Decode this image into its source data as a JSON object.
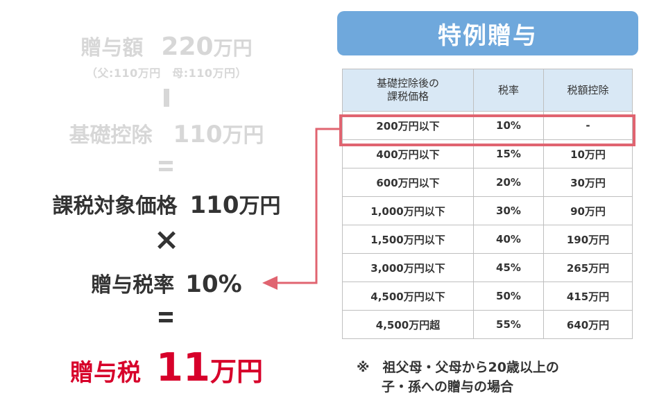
{
  "left": {
    "gift": {
      "label": "贈与額",
      "value": "220",
      "unit": "万円"
    },
    "gift_note": "（父:110万円　母:110万円）",
    "deduction": {
      "label": "基礎控除",
      "value": "110",
      "unit": "万円"
    },
    "taxable": {
      "label": "課税対象価格",
      "value": "110",
      "unit": "万円"
    },
    "times": "×",
    "rate": {
      "label": "贈与税率",
      "value": "10%"
    },
    "tax": {
      "label": "贈与税",
      "value": "11",
      "unit": "万円"
    }
  },
  "banner": "特例贈与",
  "table": {
    "headers": [
      "基礎控除後の\n課税価格",
      "税率",
      "税額控除"
    ],
    "rows": [
      [
        "200万円以下",
        "10%",
        "-"
      ],
      [
        "400万円以下",
        "15%",
        "10万円"
      ],
      [
        "600万円以下",
        "20%",
        "30万円"
      ],
      [
        "1,000万円以下",
        "30%",
        "90万円"
      ],
      [
        "1,500万円以下",
        "40%",
        "190万円"
      ],
      [
        "3,000万円以下",
        "45%",
        "265万円"
      ],
      [
        "4,500万円以下",
        "50%",
        "415万円"
      ],
      [
        "4,500万円超",
        "55%",
        "640万円"
      ]
    ],
    "highlighted_row": 0
  },
  "note": {
    "line1": "※　祖父母・父母から20歳以上の",
    "line2": "子・孫への贈与の場合"
  },
  "colors": {
    "accent_red": "#d7002a",
    "highlight": "#e06470",
    "banner": "#6fa8dc",
    "header_bg": "#d9e8f5"
  }
}
